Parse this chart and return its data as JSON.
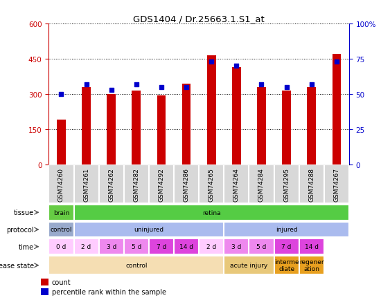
{
  "title": "GDS1404 / Dr.25663.1.S1_at",
  "samples": [
    "GSM74260",
    "GSM74261",
    "GSM74262",
    "GSM74282",
    "GSM74292",
    "GSM74286",
    "GSM74265",
    "GSM74264",
    "GSM74284",
    "GSM74295",
    "GSM74288",
    "GSM74267"
  ],
  "counts": [
    190,
    330,
    300,
    315,
    295,
    345,
    465,
    415,
    330,
    315,
    330,
    470
  ],
  "percentiles": [
    50,
    57,
    53,
    57,
    55,
    55,
    73,
    70,
    57,
    55,
    57,
    73
  ],
  "bar_color": "#cc0000",
  "dot_color": "#0000cc",
  "ylim_left": [
    0,
    600
  ],
  "ylim_right": [
    0,
    100
  ],
  "yticks_left": [
    0,
    150,
    300,
    450,
    600
  ],
  "yticks_right": [
    0,
    25,
    50,
    75,
    100
  ],
  "left_axis_color": "#cc0000",
  "right_axis_color": "#0000cc",
  "tissue_row": {
    "label": "tissue",
    "segments": [
      {
        "text": "brain",
        "start": 0,
        "end": 1,
        "color": "#66cc44"
      },
      {
        "text": "retina",
        "start": 1,
        "end": 12,
        "color": "#55cc44"
      }
    ]
  },
  "protocol_row": {
    "label": "protocol",
    "segments": [
      {
        "text": "control",
        "start": 0,
        "end": 1,
        "color": "#99aacc"
      },
      {
        "text": "uninjured",
        "start": 1,
        "end": 7,
        "color": "#aabbee"
      },
      {
        "text": "injured",
        "start": 7,
        "end": 12,
        "color": "#aabbee"
      }
    ]
  },
  "time_row": {
    "label": "time",
    "segments": [
      {
        "text": "0 d",
        "start": 0,
        "end": 1,
        "color": "#ffccff"
      },
      {
        "text": "2 d",
        "start": 1,
        "end": 2,
        "color": "#ffccff"
      },
      {
        "text": "3 d",
        "start": 2,
        "end": 3,
        "color": "#ee88ee"
      },
      {
        "text": "5 d",
        "start": 3,
        "end": 4,
        "color": "#ee88ee"
      },
      {
        "text": "7 d",
        "start": 4,
        "end": 5,
        "color": "#dd44dd"
      },
      {
        "text": "14 d",
        "start": 5,
        "end": 6,
        "color": "#dd44dd"
      },
      {
        "text": "2 d",
        "start": 6,
        "end": 7,
        "color": "#ffccff"
      },
      {
        "text": "3 d",
        "start": 7,
        "end": 8,
        "color": "#ee88ee"
      },
      {
        "text": "5 d",
        "start": 8,
        "end": 9,
        "color": "#ee88ee"
      },
      {
        "text": "7 d",
        "start": 9,
        "end": 10,
        "color": "#dd44dd"
      },
      {
        "text": "14 d",
        "start": 10,
        "end": 11,
        "color": "#dd44dd"
      }
    ]
  },
  "disease_row": {
    "label": "disease state",
    "segments": [
      {
        "text": "control",
        "start": 0,
        "end": 7,
        "color": "#f5deb3"
      },
      {
        "text": "acute injury",
        "start": 7,
        "end": 9,
        "color": "#e8c87a"
      },
      {
        "text": "interme\ndiate",
        "start": 9,
        "end": 10,
        "color": "#e8a020"
      },
      {
        "text": "regener\nation",
        "start": 10,
        "end": 11,
        "color": "#e8a020"
      }
    ]
  }
}
